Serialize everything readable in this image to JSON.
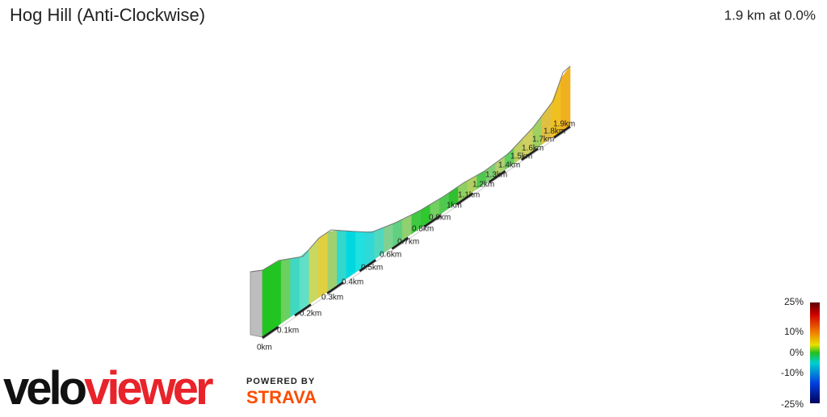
{
  "header": {
    "title": "Hog Hill (Anti-Clockwise)",
    "summary": "1.9 km at 0.0%"
  },
  "distance_labels": [
    "0km",
    "0.1km",
    "0.2km",
    "0.3km",
    "0.4km",
    "0.5km",
    "0.6km",
    "0.7km",
    "0.8km",
    "0.9km",
    "1km",
    "1.1km",
    "1.2km",
    "1.3km",
    "1.4km",
    "1.5km",
    "1.6km",
    "1.7km",
    "1.8km",
    "1.9km"
  ],
  "scale_labels": [
    "25%",
    "10%",
    "0%",
    "-10%",
    "-25%"
  ],
  "branding": {
    "logo_dark": "velo",
    "logo_red": "viewer",
    "powered": "POWERED BY",
    "strava": "STRAVA"
  }
}
